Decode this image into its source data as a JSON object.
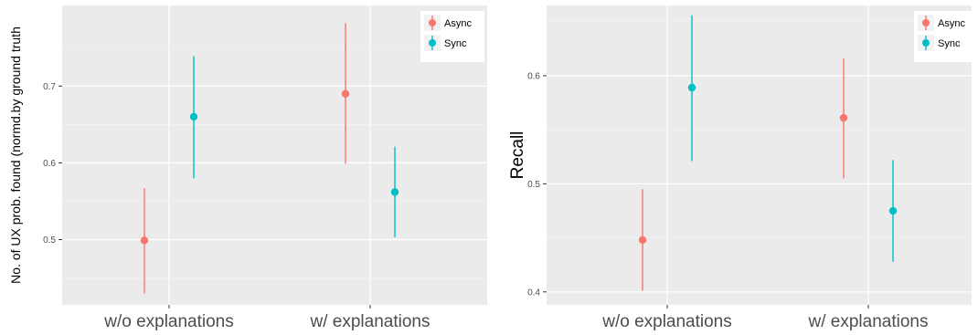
{
  "chart_data": [
    {
      "type": "scatter",
      "subtype": "point with error bars",
      "ylabel": "No. of UX prob. found (normd.by ground truth",
      "xlabel": "",
      "categories": [
        "w/o explanations",
        "w/ explanations"
      ],
      "ylim": [
        0.415,
        0.805
      ],
      "yticks": [
        0.5,
        0.6,
        0.7
      ],
      "ytick_labels": [
        "0.5",
        "0.6",
        "0.7"
      ],
      "grid": true,
      "legend_position": "top-right",
      "series": [
        {
          "name": "Async",
          "color": "#F8766D",
          "values": [
            0.499,
            0.69
          ],
          "lower": [
            0.43,
            0.599
          ],
          "upper": [
            0.567,
            0.782
          ]
        },
        {
          "name": "Sync",
          "color": "#00BFC4",
          "values": [
            0.66,
            0.562
          ],
          "lower": [
            0.58,
            0.503
          ],
          "upper": [
            0.739,
            0.621
          ]
        }
      ]
    },
    {
      "type": "scatter",
      "subtype": "point with error bars",
      "ylabel": "Recall",
      "xlabel": "",
      "categories": [
        "w/o explanations",
        "w/ explanations"
      ],
      "ylim": [
        0.388,
        0.665
      ],
      "yticks": [
        0.4,
        0.5,
        0.6
      ],
      "ytick_labels": [
        "0.4",
        "0.5",
        "0.6"
      ],
      "grid": true,
      "legend_position": "top-right",
      "series": [
        {
          "name": "Async",
          "color": "#F8766D",
          "values": [
            0.448,
            0.561
          ],
          "lower": [
            0.401,
            0.505
          ],
          "upper": [
            0.495,
            0.616
          ]
        },
        {
          "name": "Sync",
          "color": "#00BFC4",
          "values": [
            0.589,
            0.475
          ],
          "lower": [
            0.521,
            0.428
          ],
          "upper": [
            0.656,
            0.522
          ]
        }
      ]
    }
  ]
}
